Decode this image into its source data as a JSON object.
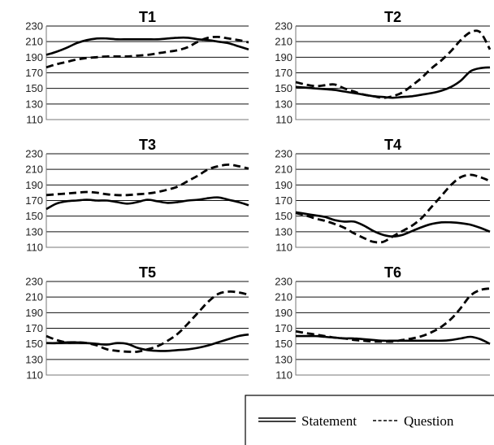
{
  "chart_data": {
    "type": "line",
    "ylim": [
      110,
      230
    ],
    "yticks": [
      110,
      130,
      150,
      170,
      190,
      210,
      230
    ],
    "x": [
      0,
      1,
      2,
      3,
      4,
      5,
      6,
      7,
      8,
      9,
      10,
      11,
      12,
      13,
      14,
      15,
      16,
      17,
      18,
      19,
      20
    ],
    "legend": {
      "placement": "bottom-right",
      "entries": [
        {
          "label": "Statement",
          "style": "solid"
        },
        {
          "label": "Question",
          "style": "dashed"
        }
      ]
    },
    "panels": [
      {
        "title": "T1",
        "series": [
          {
            "name": "Statement",
            "style": "solid",
            "values": [
              193,
              197,
              202,
              208,
              212,
              214,
              214,
              213,
              213,
              213,
              213,
              213,
              214,
              215,
              215,
              213,
              212,
              210,
              208,
              204,
              200
            ]
          },
          {
            "name": "Question",
            "style": "dashed",
            "values": [
              177,
              181,
              184,
              187,
              189,
              190,
              191,
              191,
              191,
              192,
              193,
              195,
              197,
              199,
              203,
              210,
              215,
              216,
              214,
              212,
              209
            ]
          }
        ]
      },
      {
        "title": "T2",
        "series": [
          {
            "name": "Statement",
            "style": "solid",
            "values": [
              152,
              151,
              150,
              149,
              148,
              146,
              144,
              142,
              140,
              139,
              138,
              139,
              140,
              142,
              144,
              147,
              152,
              160,
              172,
              176,
              177
            ]
          },
          {
            "name": "Question",
            "style": "dashed",
            "values": [
              158,
              155,
              153,
              154,
              155,
              150,
              146,
              142,
              140,
              138,
              140,
              145,
              154,
              164,
              176,
              186,
              198,
              212,
              222,
              222,
              200
            ]
          }
        ]
      },
      {
        "title": "T3",
        "series": [
          {
            "name": "Statement",
            "style": "solid",
            "values": [
              159,
              166,
              169,
              170,
              171,
              170,
              170,
              168,
              166,
              168,
              171,
              169,
              167,
              168,
              170,
              171,
              173,
              174,
              171,
              168,
              164
            ]
          },
          {
            "name": "Question",
            "style": "dashed",
            "values": [
              177,
              178,
              179,
              180,
              181,
              180,
              178,
              177,
              177,
              178,
              179,
              181,
              184,
              188,
              195,
              202,
              210,
              214,
              216,
              214,
              211
            ]
          }
        ]
      },
      {
        "title": "T4",
        "series": [
          {
            "name": "Statement",
            "style": "solid",
            "values": [
              155,
              153,
              151,
              149,
              145,
              143,
              143,
              138,
              131,
              126,
              124,
              126,
              131,
              136,
              140,
              142,
              142,
              141,
              139,
              135,
              130
            ]
          },
          {
            "name": "Question",
            "style": "dashed",
            "values": [
              154,
              151,
              147,
              144,
              140,
              135,
              128,
              122,
              117,
              117,
              124,
              131,
              138,
              148,
              162,
              176,
              190,
              200,
              203,
              200,
              195
            ]
          }
        ]
      },
      {
        "title": "T5",
        "series": [
          {
            "name": "Statement",
            "style": "solid",
            "values": [
              151,
              151,
              152,
              152,
              151,
              150,
              149,
              151,
              150,
              145,
              142,
              141,
              141,
              142,
              143,
              145,
              148,
              152,
              156,
              160,
              162
            ]
          },
          {
            "name": "Question",
            "style": "dashed",
            "values": [
              160,
              155,
              152,
              152,
              151,
              148,
              143,
              141,
              140,
              140,
              143,
              147,
              154,
              163,
              176,
              190,
              204,
              214,
              217,
              216,
              213
            ]
          }
        ]
      },
      {
        "title": "T6",
        "series": [
          {
            "name": "Statement",
            "style": "solid",
            "values": [
              160,
              160,
              160,
              159,
              158,
              157,
              157,
              156,
              155,
              154,
              154,
              154,
              154,
              154,
              154,
              154,
              155,
              157,
              159,
              156,
              150
            ]
          },
          {
            "name": "Question",
            "style": "dashed",
            "values": [
              166,
              164,
              162,
              160,
              158,
              157,
              155,
              154,
              153,
              153,
              153,
              155,
              157,
              160,
              165,
              172,
              182,
              196,
              212,
              219,
              221
            ]
          }
        ]
      }
    ]
  }
}
